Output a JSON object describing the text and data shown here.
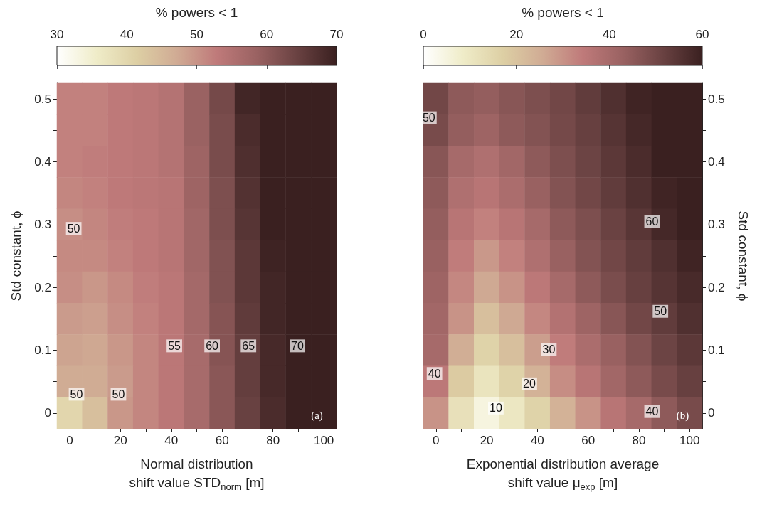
{
  "chart_data": [
    {
      "type": "heatmap",
      "xlabel": "Normal distribution\nshift value STD$_{norm}$ [m]",
      "ylabel": "Std constant, ϕ",
      "clabel": "% powers < 1",
      "clim": [
        30,
        70
      ],
      "cticks": [
        30,
        40,
        50,
        60,
        70
      ],
      "categories": [
        "0",
        null,
        "20",
        null,
        "40",
        null,
        "60",
        null,
        "80",
        null,
        "100"
      ],
      "y_categories": [
        "0.5",
        null,
        "0.4",
        null,
        "0.3",
        null,
        "0.2",
        null,
        "0.1",
        null,
        "0"
      ],
      "cells": [
        [
          52,
          52,
          53,
          53.5,
          54.5,
          58.5,
          63,
          69,
          72,
          74,
          76
        ],
        [
          52,
          52,
          53,
          53.5,
          54.5,
          58.5,
          62.5,
          68,
          71.5,
          73.5,
          75.5
        ],
        [
          52,
          52.5,
          53,
          53.5,
          54.5,
          58,
          62.5,
          67.5,
          71,
          73,
          75
        ],
        [
          51.5,
          52,
          53,
          53.5,
          54,
          58,
          62,
          67,
          70.5,
          72.5,
          74.5
        ],
        [
          50.5,
          51.5,
          52.5,
          53,
          54,
          57.5,
          62,
          66.5,
          70,
          72,
          74
        ],
        [
          51,
          51,
          52,
          53,
          54,
          57.5,
          61.5,
          66,
          69.5,
          71.5,
          73.5
        ],
        [
          50.5,
          49.5,
          51,
          52.5,
          53.5,
          57,
          61.5,
          66,
          69,
          71,
          73
        ],
        [
          49,
          48.5,
          50.5,
          52,
          53.5,
          57,
          61,
          65.5,
          69,
          71,
          73
        ],
        [
          48,
          47.5,
          49.5,
          51.5,
          53.5,
          56.5,
          61,
          65,
          68.5,
          70.5,
          72.5
        ],
        [
          47,
          47,
          49,
          51.5,
          53.5,
          56.5,
          60.5,
          65,
          68.5,
          70.5,
          72
        ],
        [
          40,
          44,
          49.5,
          51.5,
          53.5,
          56.5,
          60.5,
          64.5,
          68,
          70,
          72
        ]
      ],
      "annotations": [
        "50",
        "50",
        "50",
        "55",
        "60",
        "65",
        "70",
        "(a)"
      ]
    },
    {
      "type": "heatmap",
      "xlabel": "Exponential distribution average\nshift value μ$_{exp}$ [m]",
      "ylabel": "Std constant, ϕ",
      "clabel": "% powers < 1",
      "clim": [
        0,
        60
      ],
      "cticks": [
        0,
        20,
        40,
        60
      ],
      "categories": [
        "0",
        null,
        "20",
        null,
        "40",
        null,
        "60",
        null,
        "80",
        null,
        "100"
      ],
      "y_categories": [
        "0.5",
        null,
        "0.4",
        null,
        "0.3",
        null,
        "0.2",
        null,
        "0.1",
        null,
        "0"
      ],
      "cells": [
        [
          50,
          45,
          44,
          46,
          48,
          50,
          53,
          56,
          59,
          60,
          60
        ],
        [
          49,
          44,
          42,
          45,
          47,
          49.5,
          52,
          55,
          58,
          60,
          60
        ],
        [
          46,
          40,
          38,
          41,
          45,
          48,
          51,
          54,
          57,
          60,
          60
        ],
        [
          45,
          38,
          36,
          39,
          43,
          47,
          50,
          53,
          56,
          59,
          60
        ],
        [
          44,
          36,
          33,
          36,
          40,
          45,
          48,
          51.5,
          54.5,
          58,
          60
        ],
        [
          43,
          34,
          29,
          33,
          38,
          43,
          47,
          50,
          53,
          56,
          59
        ],
        [
          42,
          32,
          26,
          30,
          35,
          40,
          45,
          48.5,
          52,
          55,
          57.5
        ],
        [
          41,
          30,
          21,
          26,
          32,
          37,
          42,
          46,
          50,
          53,
          56
        ],
        [
          40,
          25,
          16,
          21,
          28,
          34,
          39,
          43,
          47,
          51,
          54
        ],
        [
          35,
          18,
          11,
          16,
          24,
          31,
          36,
          41,
          45,
          49,
          52
        ],
        [
          30,
          12,
          5,
          10,
          16,
          24,
          30,
          36,
          40,
          45,
          49
        ]
      ],
      "annotations": [
        "50",
        "60",
        "50",
        "40",
        "30",
        "20",
        "10",
        "40",
        "(b)"
      ]
    }
  ]
}
